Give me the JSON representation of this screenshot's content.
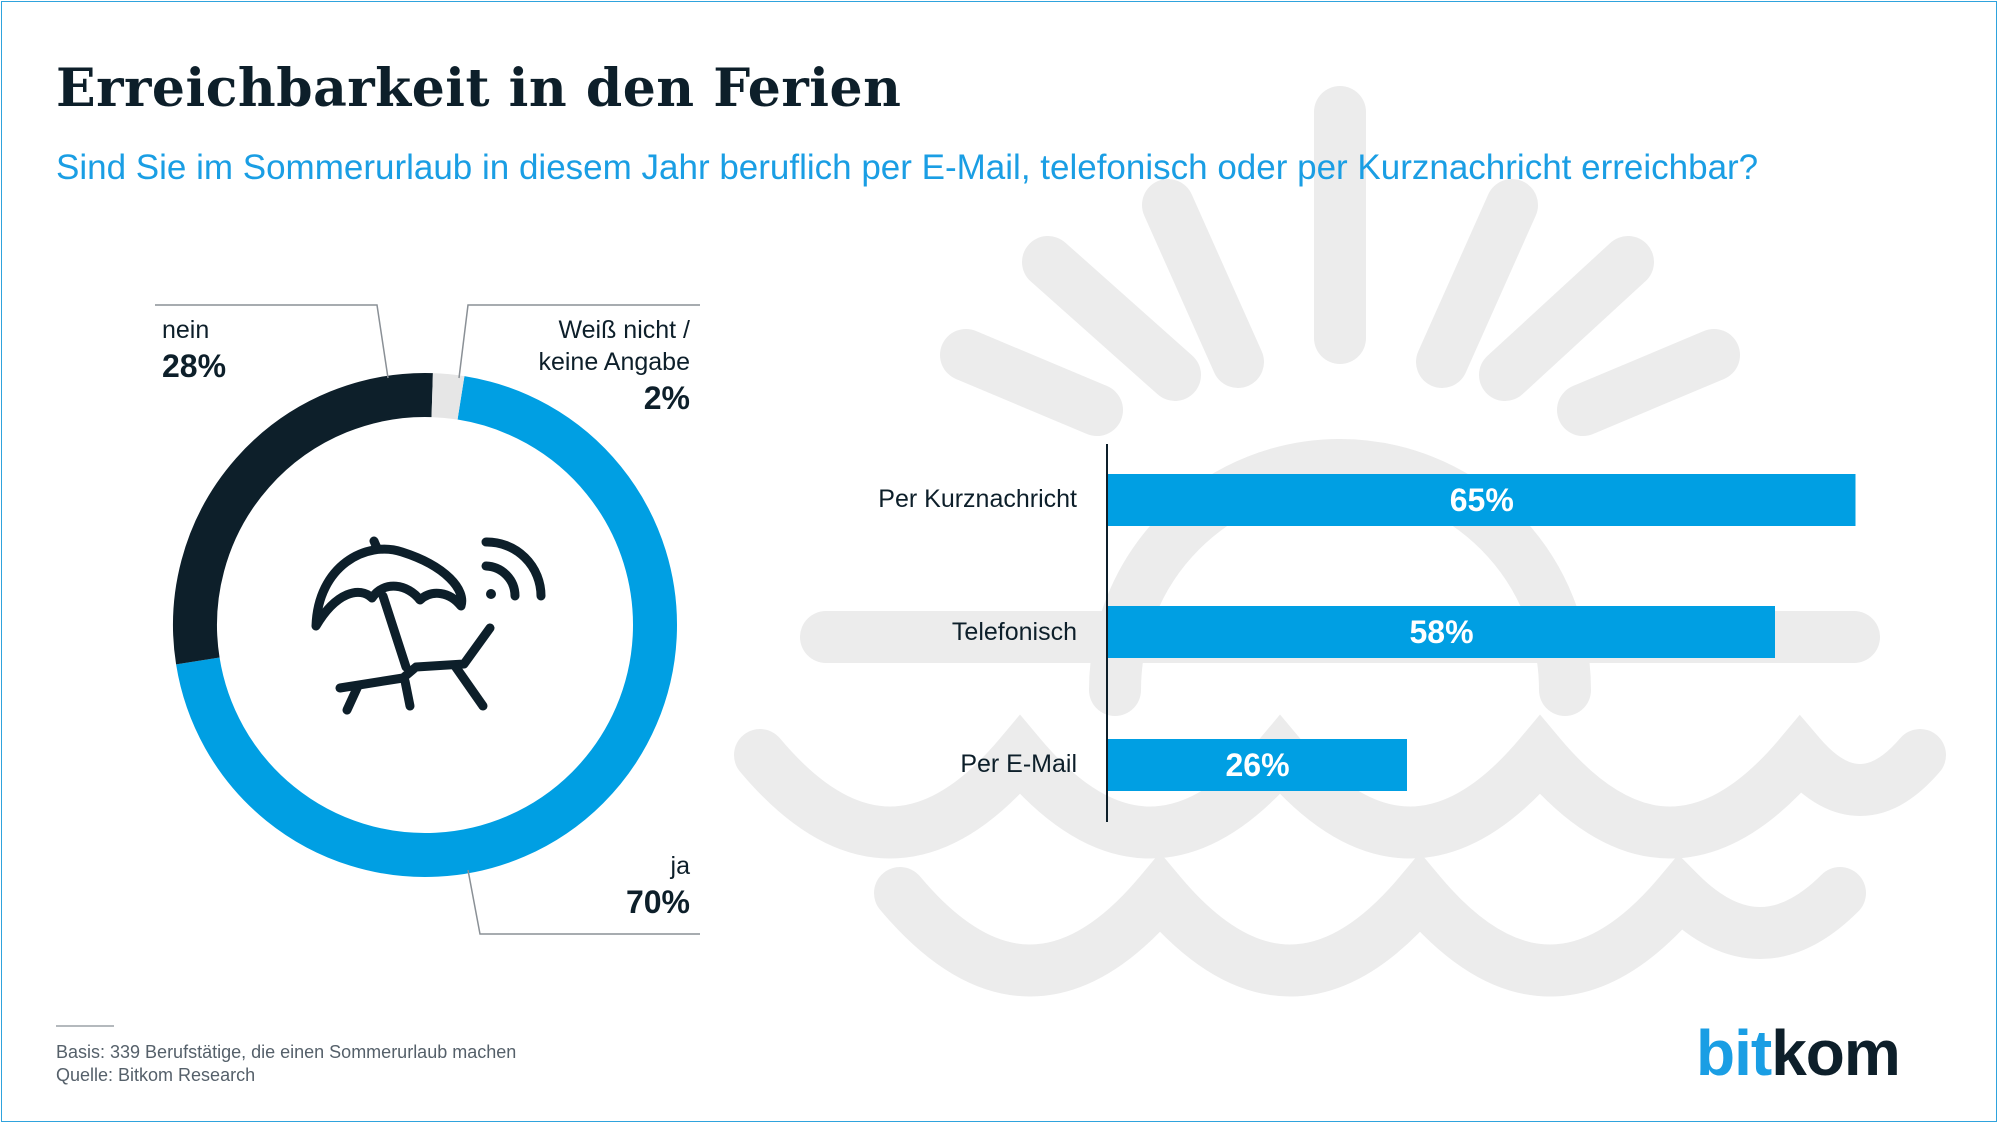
{
  "header": {
    "title": "Erreichbarkeit in den Ferien",
    "subtitle": "Sind Sie im Sommerurlaub in diesem Jahr beruflich per E-Mail, telefonisch oder per Kurznachricht erreichbar?"
  },
  "icons": {
    "background": "sun-over-waves-illustration",
    "center": "beach-umbrella-lounger-wifi-icon"
  },
  "colors": {
    "accent": "#009fe3",
    "dark": "#0d1f2a",
    "light_gray": "#e6e6e6",
    "background_art": "#ececec"
  },
  "chart_data": [
    {
      "type": "pie",
      "style": "donut",
      "slices": [
        {
          "label": "nein",
          "value": 28,
          "value_label": "28%",
          "color": "#0d1f2a"
        },
        {
          "label": "Weiß nicht / keine Angabe",
          "label_lines": [
            "Weiß nicht /",
            "keine Angabe"
          ],
          "value": 2,
          "value_label": "2%",
          "color": "#e6e6e6"
        },
        {
          "label": "ja",
          "value": 70,
          "value_label": "70%",
          "color": "#009fe3"
        }
      ]
    },
    {
      "type": "bar",
      "orientation": "horizontal",
      "categories": [
        "Per Kurznachricht",
        "Telefonisch",
        "Per E-Mail"
      ],
      "values": [
        65,
        58,
        26
      ],
      "value_labels": [
        "65%",
        "58%",
        "26%"
      ],
      "unit": "%",
      "color": "#009fe3"
    }
  ],
  "footer": {
    "basis": "Basis: 339 Berufstätige, die einen Sommerurlaub machen",
    "source": "Quelle: Bitkom Research",
    "logo_part1": "bit",
    "logo_part2": "kom"
  }
}
